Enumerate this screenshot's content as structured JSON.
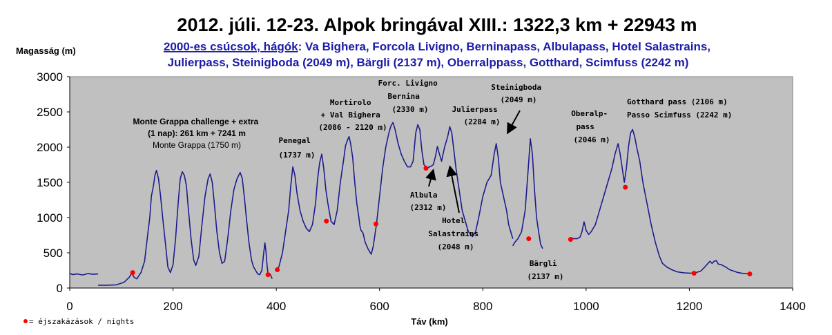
{
  "chart_data": {
    "type": "line",
    "title": "2012. júli. 12-23. Alpok bringával XIII.: 1322,3 km + 22943 m",
    "subtitle_link": "2000-es csúcsok, hágók",
    "subtitle_rest": ": Va Bighera, Forcola Livigno, Berninapass, Albulapass, Hotel Salastrains,",
    "subtitle_line2": "Julierpass, Steinigboda (2049 m), Bärgli (2137 m), Oberralppass, Gotthard, Scimfuss (2242 m)",
    "ylabel": "Magasság (m)",
    "xlabel": "Táv (km)",
    "xlim": [
      0,
      1400
    ],
    "ylim": [
      0,
      3000
    ],
    "x_ticks": [
      "0",
      "200",
      "400",
      "600",
      "800",
      "1000",
      "1200",
      "1400"
    ],
    "y_ticks": [
      "0",
      "500",
      "1000",
      "1500",
      "2000",
      "2500",
      "3000"
    ],
    "grid": false,
    "plot_background": "#c0c0c0",
    "line_color": "#1c1c8c",
    "marker_color": "#ff0000",
    "series": [
      {
        "segments": [
          [
            [
              0,
              210
            ],
            [
              5,
              190
            ],
            [
              15,
              200
            ],
            [
              25,
              185
            ],
            [
              35,
              205
            ],
            [
              45,
              195
            ],
            [
              55,
              200
            ]
          ],
          [
            [
              55,
              40
            ],
            [
              70,
              40
            ],
            [
              90,
              45
            ],
            [
              105,
              80
            ],
            [
              115,
              150
            ],
            [
              120,
              210
            ],
            [
              125,
              150
            ],
            [
              130,
              130
            ],
            [
              138,
              220
            ],
            [
              145,
              380
            ],
            [
              150,
              700
            ],
            [
              155,
              1000
            ],
            [
              158,
              1300
            ],
            [
              162,
              1450
            ],
            [
              165,
              1600
            ],
            [
              168,
              1670
            ],
            [
              172,
              1550
            ],
            [
              176,
              1300
            ],
            [
              180,
              1000
            ],
            [
              185,
              650
            ],
            [
              190,
              300
            ],
            [
              195,
              220
            ],
            [
              200,
              330
            ],
            [
              205,
              700
            ],
            [
              210,
              1200
            ],
            [
              214,
              1550
            ],
            [
              218,
              1650
            ],
            [
              222,
              1600
            ],
            [
              226,
              1450
            ],
            [
              230,
              1100
            ],
            [
              235,
              700
            ],
            [
              240,
              400
            ],
            [
              244,
              320
            ],
            [
              250,
              450
            ],
            [
              256,
              900
            ],
            [
              262,
              1300
            ],
            [
              268,
              1550
            ],
            [
              272,
              1620
            ],
            [
              276,
              1500
            ],
            [
              280,
              1200
            ],
            [
              285,
              800
            ],
            [
              290,
              500
            ],
            [
              295,
              350
            ],
            [
              300,
              380
            ],
            [
              306,
              700
            ],
            [
              312,
              1100
            ],
            [
              318,
              1400
            ],
            [
              324,
              1550
            ],
            [
              330,
              1640
            ],
            [
              334,
              1560
            ],
            [
              338,
              1300
            ],
            [
              342,
              1000
            ],
            [
              347,
              650
            ],
            [
              352,
              400
            ],
            [
              356,
              300
            ],
            [
              360,
              250
            ],
            [
              364,
              200
            ],
            [
              368,
              190
            ],
            [
              372,
              250
            ],
            [
              376,
              520
            ],
            [
              378,
              640
            ],
            [
              380,
              520
            ],
            [
              382,
              330
            ],
            [
              384,
              200
            ],
            [
              388,
              200
            ],
            [
              392,
              130
            ]
          ],
          [
            [
              400,
              240
            ],
            [
              405,
              300
            ],
            [
              412,
              500
            ],
            [
              418,
              800
            ],
            [
              424,
              1100
            ],
            [
              428,
              1450
            ],
            [
              432,
              1720
            ],
            [
              436,
              1600
            ],
            [
              440,
              1350
            ],
            [
              446,
              1100
            ],
            [
              452,
              950
            ],
            [
              458,
              850
            ],
            [
              464,
              800
            ],
            [
              470,
              900
            ],
            [
              476,
              1200
            ],
            [
              480,
              1550
            ],
            [
              484,
              1780
            ],
            [
              488,
              1900
            ],
            [
              492,
              1700
            ],
            [
              496,
              1400
            ],
            [
              500,
              1200
            ],
            [
              506,
              950
            ],
            [
              512,
              900
            ],
            [
              518,
              1100
            ],
            [
              524,
              1500
            ],
            [
              530,
              1800
            ],
            [
              534,
              2020
            ],
            [
              538,
              2100
            ],
            [
              541,
              2150
            ],
            [
              544,
              2050
            ],
            [
              548,
              1850
            ],
            [
              552,
              1500
            ],
            [
              556,
              1200
            ],
            [
              560,
              1000
            ],
            [
              562,
              880
            ],
            [
              564,
              820
            ],
            [
              568,
              780
            ],
            [
              572,
              650
            ],
            [
              578,
              550
            ],
            [
              584,
              480
            ],
            [
              588,
              600
            ],
            [
              594,
              900
            ],
            [
              600,
              1300
            ],
            [
              606,
              1700
            ],
            [
              612,
              2000
            ],
            [
              618,
              2200
            ],
            [
              622,
              2300
            ],
            [
              626,
              2350
            ],
            [
              630,
              2250
            ],
            [
              636,
              2050
            ],
            [
              642,
              1900
            ],
            [
              648,
              1800
            ],
            [
              654,
              1720
            ],
            [
              660,
              1720
            ],
            [
              665,
              1800
            ],
            [
              670,
              2200
            ],
            [
              674,
              2320
            ],
            [
              678,
              2250
            ],
            [
              682,
              1950
            ],
            [
              686,
              1750
            ],
            [
              690,
              1720
            ],
            [
              694,
              1710
            ],
            [
              700,
              1730
            ],
            [
              704,
              1750
            ],
            [
              708,
              1860
            ],
            [
              712,
              2010
            ],
            [
              716,
              1900
            ],
            [
              720,
              1800
            ],
            [
              726,
              2000
            ],
            [
              732,
              2150
            ],
            [
              736,
              2290
            ],
            [
              740,
              2200
            ],
            [
              744,
              1950
            ],
            [
              748,
              1700
            ],
            [
              752,
              1500
            ],
            [
              756,
              1300
            ],
            [
              760,
              1100
            ],
            [
              766,
              950
            ],
            [
              772,
              800
            ],
            [
              780,
              730
            ],
            [
              786,
              800
            ],
            [
              792,
              1000
            ],
            [
              800,
              1300
            ],
            [
              808,
              1500
            ],
            [
              816,
              1600
            ],
            [
              822,
              1900
            ],
            [
              826,
              2050
            ],
            [
              830,
              1850
            ],
            [
              834,
              1500
            ],
            [
              840,
              1300
            ],
            [
              846,
              1100
            ],
            [
              850,
              900
            ],
            [
              856,
              750
            ],
            [
              858,
              700
            ]
          ],
          [
            [
              858,
              600
            ],
            [
              862,
              650
            ],
            [
              868,
              700
            ],
            [
              875,
              800
            ],
            [
              882,
              1100
            ],
            [
              888,
              1700
            ],
            [
              892,
              2120
            ],
            [
              896,
              1900
            ],
            [
              900,
              1400
            ],
            [
              904,
              1000
            ],
            [
              908,
              800
            ],
            [
              912,
              620
            ],
            [
              916,
              560
            ]
          ],
          [
            [
              970,
              720
            ],
            [
              975,
              700
            ],
            [
              982,
              700
            ],
            [
              988,
              720
            ],
            [
              992,
              800
            ],
            [
              996,
              940
            ],
            [
              1000,
              820
            ],
            [
              1005,
              760
            ],
            [
              1010,
              800
            ],
            [
              1018,
              900
            ],
            [
              1026,
              1100
            ],
            [
              1034,
              1300
            ],
            [
              1042,
              1500
            ],
            [
              1050,
              1700
            ],
            [
              1056,
              1900
            ],
            [
              1062,
              2050
            ],
            [
              1066,
              1900
            ],
            [
              1070,
              1700
            ],
            [
              1074,
              1500
            ],
            [
              1078,
              1700
            ],
            [
              1082,
              2000
            ],
            [
              1086,
              2200
            ],
            [
              1090,
              2250
            ],
            [
              1094,
              2150
            ],
            [
              1098,
              2000
            ],
            [
              1104,
              1800
            ],
            [
              1110,
              1500
            ],
            [
              1118,
              1200
            ],
            [
              1126,
              900
            ],
            [
              1134,
              650
            ],
            [
              1142,
              450
            ],
            [
              1148,
              350
            ],
            [
              1156,
              300
            ],
            [
              1166,
              260
            ],
            [
              1176,
              230
            ],
            [
              1190,
              215
            ],
            [
              1205,
              210
            ],
            [
              1215,
              225
            ],
            [
              1222,
              240
            ],
            [
              1230,
              300
            ],
            [
              1236,
              350
            ],
            [
              1240,
              380
            ],
            [
              1244,
              350
            ],
            [
              1248,
              380
            ],
            [
              1252,
              390
            ],
            [
              1256,
              340
            ],
            [
              1262,
              330
            ],
            [
              1270,
              300
            ],
            [
              1278,
              260
            ],
            [
              1286,
              240
            ],
            [
              1294,
              220
            ],
            [
              1302,
              210
            ],
            [
              1310,
              205
            ],
            [
              1318,
              200
            ]
          ]
        ]
      }
    ],
    "nights": [
      [
        122,
        220
      ],
      [
        384,
        190
      ],
      [
        402,
        260
      ],
      [
        497,
        950
      ],
      [
        593,
        910
      ],
      [
        690,
        1700
      ],
      [
        889,
        700
      ],
      [
        970,
        690
      ],
      [
        1076,
        1430
      ],
      [
        1209,
        210
      ],
      [
        1317,
        200
      ]
    ],
    "annotations": [
      {
        "lines": [
          "Monte Grappa challenge + extra",
          "(1 nap): 261 km + 7241 m"
        ],
        "weight": "bold"
      },
      {
        "lines": [
          "Monte Grappa (1750 m)"
        ],
        "weight": "normal"
      },
      {
        "lines": [
          "Penegal",
          "(1737 m)"
        ]
      },
      {
        "lines": [
          "Mortirolo",
          "+ Val Bighera",
          "(2086 - 2120 m)"
        ]
      },
      {
        "lines": [
          "Forc. Livigno",
          "Bernina",
          "(2330 m)"
        ]
      },
      {
        "lines": [
          "Julierpass",
          "(2284 m)"
        ]
      },
      {
        "lines": [
          "Steinigboda",
          "(2049 m)"
        ]
      },
      {
        "lines": [
          "Oberalp-",
          "pass",
          "(2046 m)"
        ]
      },
      {
        "lines": [
          "Gotthard pass (2106 m)",
          "Passo Scimfuss (2242 m)"
        ]
      },
      {
        "lines": [
          "Albula",
          "(2312 m)"
        ]
      },
      {
        "lines": [
          "Hotel",
          "Salastrains",
          "(2048 m)"
        ]
      },
      {
        "lines": [
          "Bärgli",
          "(2137 m)"
        ]
      }
    ],
    "legend": {
      "marker": "•",
      "text": " = éjszakázások / nights"
    }
  }
}
